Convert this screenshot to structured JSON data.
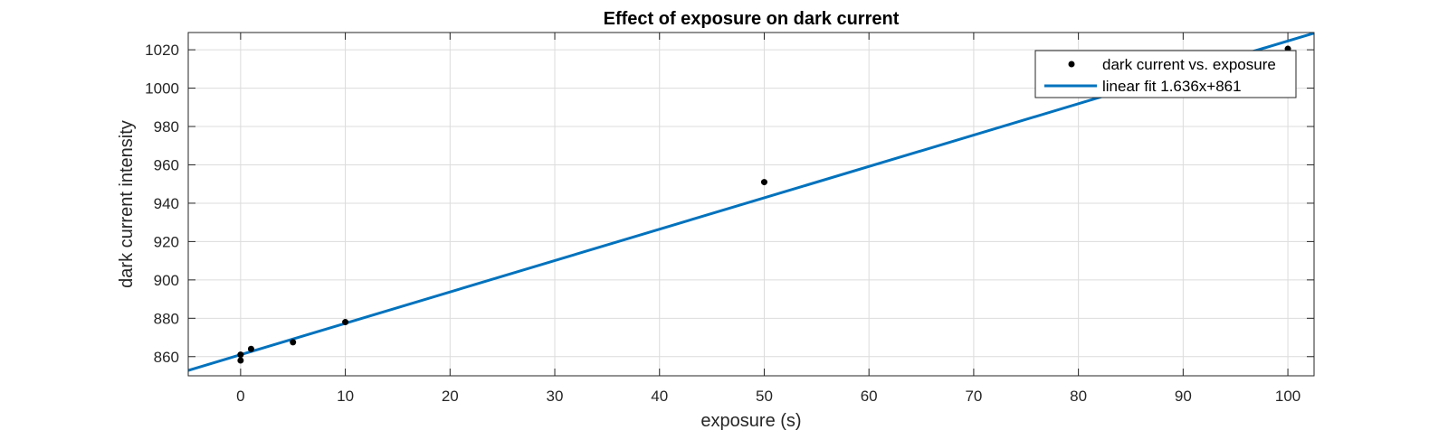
{
  "chart_data": {
    "type": "scatter",
    "title": "Effect of exposure on dark current",
    "xlabel": "exposure (s)",
    "ylabel": "dark current intensity",
    "xlim": [
      -5,
      102.5
    ],
    "ylim": [
      850,
      1029
    ],
    "xticks": [
      0,
      10,
      20,
      30,
      40,
      50,
      60,
      70,
      80,
      90,
      100
    ],
    "yticks": [
      860,
      880,
      900,
      920,
      940,
      960,
      980,
      1000,
      1020
    ],
    "grid": true,
    "legend_position": "top-right",
    "series": [
      {
        "name": "dark current vs. exposure",
        "kind": "scatter",
        "color": "#000000",
        "points": [
          {
            "x": 0,
            "y": 858
          },
          {
            "x": 0,
            "y": 861
          },
          {
            "x": 1,
            "y": 864
          },
          {
            "x": 5,
            "y": 867.5
          },
          {
            "x": 10,
            "y": 878
          },
          {
            "x": 50,
            "y": 951
          },
          {
            "x": 100,
            "y": 1020.5
          }
        ]
      },
      {
        "name": "linear fit 1.636x+861",
        "kind": "line",
        "color": "#0072BD",
        "slope": 1.636,
        "intercept": 861
      }
    ]
  }
}
